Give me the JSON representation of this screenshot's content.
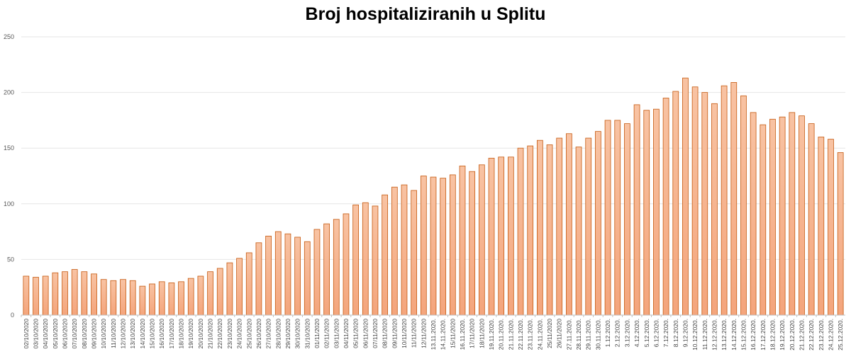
{
  "chart_data": {
    "type": "bar",
    "title": "Broj hospitaliziranih u Splitu",
    "xlabel": "",
    "ylabel": "",
    "ylim": [
      0,
      250
    ],
    "yticks": [
      0,
      50,
      100,
      150,
      200,
      250
    ],
    "grid": true,
    "legend": "none",
    "colors": {
      "bar_fill_top": "#f8c3a3",
      "bar_fill_bottom": "#f4a57c",
      "bar_edge": "#c55a11",
      "grid": "#e6e6e6",
      "axis": "#bfbfbf"
    },
    "categories": [
      "02/10/2020",
      "03/10/2020",
      "04/10/2020",
      "05/10/2020",
      "06/10/2020",
      "07/10/2020",
      "08/10/2020",
      "09/10/2020",
      "10/10/2020",
      "11/10/2020",
      "12/10/2020",
      "13/10/2020",
      "14/10/2020",
      "15/10/2020",
      "16/10/2020",
      "17/10/2020",
      "18/10/2020",
      "19/10/2020",
      "20/10/2020",
      "21/10/2020",
      "22/10/2020",
      "23/10/2020",
      "24/10/2020",
      "25/10/2020",
      "26/10/2020",
      "27/10/2020",
      "28/10/2020",
      "29/10/2020",
      "30/10/2020",
      "31/10/2020",
      "01/11/2020",
      "02/11/2020",
      "03/11/2020",
      "04/11/2020",
      "05/11/2020",
      "06/11/2020",
      "07/11/2020",
      "08/11/2020",
      "09/11/2020",
      "10/11/2020",
      "11/11/2020",
      "12/11/2020",
      "13.11.2020.",
      "14.11.2020.",
      "15/11/2020",
      "16.11.2020.",
      "17/11/2020",
      "18/11/2020",
      "19.11.2020.",
      "20.11.2020.",
      "21.11.2020.",
      "22.11.2020.",
      "23.11.2020.",
      "24.11.2020.",
      "25/11/2020",
      "26/11/2020",
      "27.11.2020.",
      "28.11.2020.",
      "29.11.2020.",
      "30.11.2020.",
      "1.12.2020.",
      "2.12.2020.",
      "3.12.2020.",
      "4.12.2020.",
      "5.12.2020.",
      "6.12.2020.",
      "7.12.2020.",
      "8.12.2020.",
      "9.12.2020.",
      "10.12.2020.",
      "11.12.2020.",
      "12.12.2020.",
      "13.12.2020.",
      "14.12.2020.",
      "15.12.2020.",
      "16.12.2020.",
      "17.12.2020.",
      "18.12.2020.",
      "19.12.2020.",
      "20.12.2020.",
      "21.12.2020.",
      "22.12.2020.",
      "23.12.2020.",
      "24.12.2020.",
      "25.12.2020."
    ],
    "values": [
      35,
      34,
      35,
      38,
      39,
      41,
      39,
      37,
      32,
      31,
      32,
      31,
      26,
      28,
      30,
      29,
      30,
      33,
      35,
      39,
      42,
      47,
      51,
      56,
      65,
      71,
      75,
      73,
      70,
      66,
      77,
      82,
      86,
      91,
      99,
      101,
      98,
      108,
      115,
      117,
      112,
      125,
      124,
      123,
      126,
      134,
      129,
      135,
      141,
      142,
      142,
      150,
      152,
      157,
      153,
      159,
      163,
      151,
      159,
      165,
      175,
      175,
      172,
      189,
      184,
      185,
      195,
      201,
      213,
      205,
      200,
      190,
      206,
      209,
      197,
      182,
      171,
      176,
      178,
      182,
      179,
      172,
      160,
      158,
      146
    ]
  }
}
